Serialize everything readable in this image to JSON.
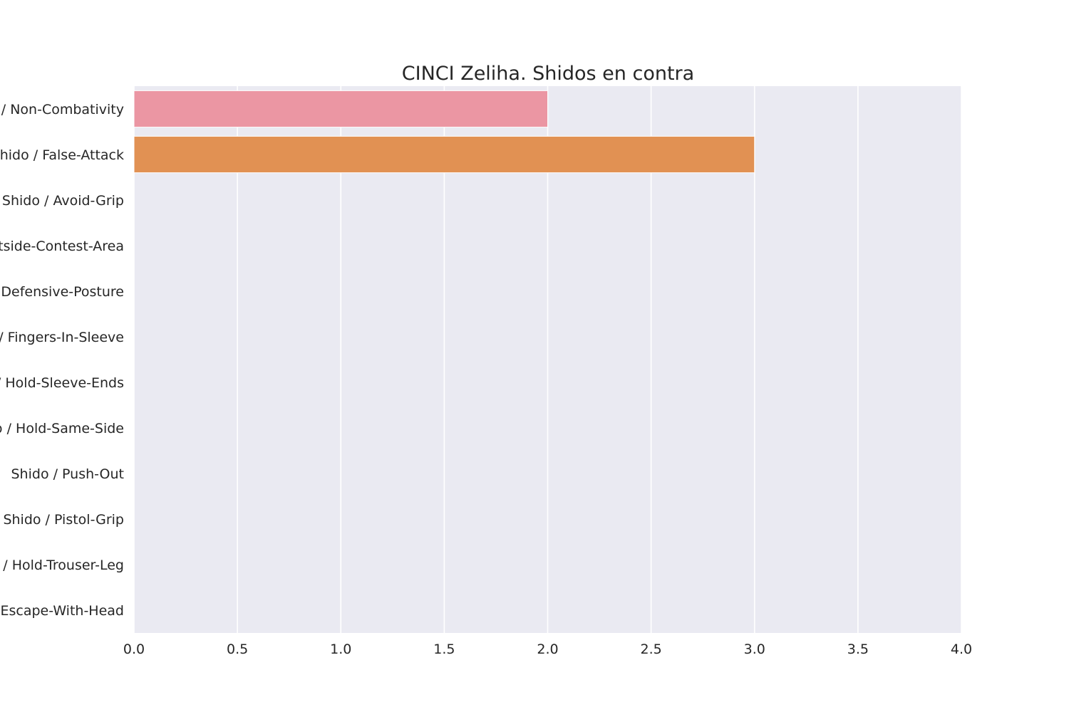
{
  "chart_data": {
    "type": "bar",
    "orientation": "horizontal",
    "title": "CINCI Zeliha. Shidos en contra",
    "categories": [
      "Shido / Non-Combativity",
      "Shido / False-Attack",
      "Shido / Avoid-Grip",
      "Shido / Outside-Contest-Area",
      "Shido / Defensive-Posture",
      "Shido / Fingers-In-Sleeve",
      "Shido / Hold-Sleeve-Ends",
      "Shido / Hold-Same-Side",
      "Shido / Push-Out",
      "Shido / Pistol-Grip",
      "Shido / Hold-Trouser-Leg",
      "Shido / Escape-With-Head"
    ],
    "values": [
      2,
      3,
      0,
      0,
      0,
      0,
      0,
      0,
      0,
      0,
      0,
      0
    ],
    "xlim": [
      0,
      4.0
    ],
    "xticks": [
      "0.0",
      "0.5",
      "1.0",
      "1.5",
      "2.0",
      "2.5",
      "3.0",
      "3.5",
      "4.0"
    ],
    "xlabel": "",
    "ylabel": "",
    "grid": true,
    "colors": {
      "plot_background": "#eaeaf2",
      "grid": "#ffffff",
      "bars": [
        "#eb96a3",
        "#e19153",
        "#c0a03c",
        "#9aae3d",
        "#5fb84b",
        "#4bbc8e",
        "#4cb9b0",
        "#50b4cc",
        "#6aabe8",
        "#a59cf0",
        "#dc88e8",
        "#ef86c4"
      ]
    }
  }
}
